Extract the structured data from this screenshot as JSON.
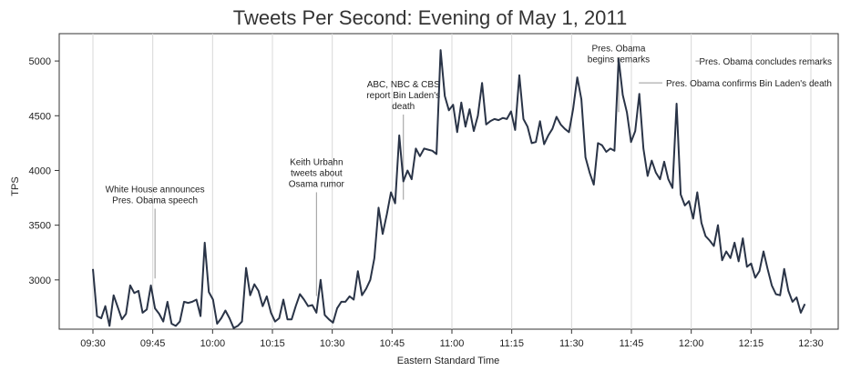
{
  "chart_data": {
    "type": "line",
    "title": "Tweets Per Second: Evening of May 1, 2011",
    "xlabel": "Eastern Standard Time",
    "ylabel": "TPS",
    "ylim": [
      2550,
      5250
    ],
    "grid": "vertical",
    "line_color": "#2a3447",
    "x_ticks": [
      "09:30",
      "09:45",
      "10:00",
      "10:15",
      "10:30",
      "10:45",
      "11:00",
      "11:15",
      "11:30",
      "11:45",
      "12:00",
      "12:15",
      "12:30"
    ],
    "y_ticks": [
      3000,
      3500,
      4000,
      4500,
      5000
    ],
    "x_range_minutes": [
      0,
      60,
      120,
      180
    ],
    "series": [
      {
        "values": [
          [
            0,
            3100
          ],
          [
            1,
            2670
          ],
          [
            2,
            2650
          ],
          [
            3,
            2760
          ],
          [
            4,
            2580
          ],
          [
            5,
            2860
          ],
          [
            6,
            2750
          ],
          [
            7,
            2640
          ],
          [
            8,
            2690
          ],
          [
            9,
            2950
          ],
          [
            10,
            2880
          ],
          [
            11,
            2900
          ],
          [
            12,
            2700
          ],
          [
            13,
            2730
          ],
          [
            14,
            2950
          ],
          [
            15,
            2740
          ],
          [
            16,
            2690
          ],
          [
            17,
            2620
          ],
          [
            18,
            2800
          ],
          [
            19,
            2600
          ],
          [
            20,
            2580
          ],
          [
            21,
            2620
          ],
          [
            22,
            2800
          ],
          [
            23,
            2790
          ],
          [
            24,
            2800
          ],
          [
            25,
            2820
          ],
          [
            26,
            2670
          ],
          [
            27,
            3340
          ],
          [
            28,
            2890
          ],
          [
            29,
            2820
          ],
          [
            30,
            2600
          ],
          [
            31,
            2650
          ],
          [
            32,
            2720
          ],
          [
            33,
            2650
          ],
          [
            34,
            2560
          ],
          [
            35,
            2580
          ],
          [
            36,
            2620
          ],
          [
            37,
            3110
          ],
          [
            38,
            2860
          ],
          [
            39,
            2960
          ],
          [
            40,
            2900
          ],
          [
            41,
            2760
          ],
          [
            42,
            2850
          ],
          [
            43,
            2700
          ],
          [
            44,
            2620
          ],
          [
            45,
            2650
          ],
          [
            46,
            2820
          ],
          [
            47,
            2640
          ],
          [
            48,
            2640
          ],
          [
            49,
            2760
          ],
          [
            50,
            2870
          ],
          [
            51,
            2820
          ],
          [
            52,
            2760
          ],
          [
            53,
            2770
          ],
          [
            54,
            2700
          ],
          [
            55,
            3000
          ],
          [
            56,
            2680
          ],
          [
            57,
            2640
          ],
          [
            58,
            2610
          ],
          [
            59,
            2740
          ],
          [
            60,
            2800
          ],
          [
            61,
            2800
          ],
          [
            62,
            2850
          ],
          [
            63,
            2820
          ],
          [
            64,
            3080
          ],
          [
            65,
            2860
          ],
          [
            66,
            2920
          ],
          [
            67,
            3000
          ],
          [
            68,
            3200
          ],
          [
            69,
            3660
          ],
          [
            70,
            3420
          ],
          [
            71,
            3600
          ],
          [
            72,
            3800
          ],
          [
            73,
            3700
          ],
          [
            74,
            4320
          ],
          [
            75,
            3900
          ],
          [
            76,
            4000
          ],
          [
            77,
            3920
          ],
          [
            78,
            4200
          ],
          [
            79,
            4130
          ],
          [
            80,
            4200
          ],
          [
            81,
            4190
          ],
          [
            82,
            4180
          ],
          [
            83,
            4150
          ],
          [
            84,
            5100
          ],
          [
            85,
            4680
          ],
          [
            86,
            4550
          ],
          [
            87,
            4600
          ],
          [
            88,
            4350
          ],
          [
            89,
            4620
          ],
          [
            90,
            4400
          ],
          [
            91,
            4560
          ],
          [
            92,
            4360
          ],
          [
            93,
            4500
          ],
          [
            94,
            4800
          ],
          [
            95,
            4420
          ],
          [
            96,
            4450
          ],
          [
            97,
            4470
          ],
          [
            98,
            4460
          ],
          [
            99,
            4480
          ],
          [
            100,
            4470
          ],
          [
            101,
            4540
          ],
          [
            102,
            4370
          ],
          [
            103,
            4870
          ],
          [
            104,
            4470
          ],
          [
            105,
            4400
          ],
          [
            106,
            4250
          ],
          [
            107,
            4260
          ],
          [
            108,
            4450
          ],
          [
            109,
            4240
          ],
          [
            110,
            4320
          ],
          [
            111,
            4380
          ],
          [
            112,
            4490
          ],
          [
            113,
            4420
          ],
          [
            114,
            4380
          ],
          [
            115,
            4350
          ],
          [
            116,
            4560
          ],
          [
            117,
            4850
          ],
          [
            118,
            4650
          ],
          [
            119,
            4120
          ],
          [
            120,
            3980
          ],
          [
            121,
            3870
          ],
          [
            122,
            4250
          ],
          [
            123,
            4230
          ],
          [
            124,
            4170
          ],
          [
            125,
            4200
          ],
          [
            126,
            4180
          ],
          [
            127,
            5020
          ],
          [
            128,
            4690
          ],
          [
            129,
            4530
          ],
          [
            130,
            4260
          ],
          [
            131,
            4360
          ],
          [
            132,
            4700
          ],
          [
            133,
            4200
          ],
          [
            134,
            3950
          ],
          [
            135,
            4090
          ],
          [
            136,
            3980
          ],
          [
            137,
            3920
          ],
          [
            138,
            4080
          ],
          [
            139,
            3920
          ],
          [
            140,
            3840
          ],
          [
            141,
            4610
          ],
          [
            142,
            3780
          ],
          [
            143,
            3680
          ],
          [
            144,
            3720
          ],
          [
            145,
            3560
          ],
          [
            146,
            3800
          ],
          [
            147,
            3520
          ],
          [
            148,
            3400
          ],
          [
            149,
            3360
          ],
          [
            150,
            3310
          ],
          [
            151,
            3500
          ],
          [
            152,
            3180
          ],
          [
            153,
            3260
          ],
          [
            154,
            3200
          ],
          [
            155,
            3340
          ],
          [
            156,
            3170
          ],
          [
            157,
            3380
          ],
          [
            158,
            3120
          ],
          [
            159,
            3150
          ],
          [
            160,
            3020
          ],
          [
            161,
            3080
          ],
          [
            162,
            3260
          ],
          [
            163,
            3100
          ],
          [
            164,
            2950
          ],
          [
            165,
            2870
          ],
          [
            166,
            2860
          ],
          [
            167,
            3100
          ],
          [
            168,
            2900
          ],
          [
            169,
            2800
          ],
          [
            170,
            2840
          ],
          [
            171,
            2700
          ],
          [
            172,
            2780
          ]
        ]
      }
    ],
    "annotations": [
      {
        "lines": [
          "White House announces",
          "Pres. Obama speech"
        ],
        "x": 15,
        "y": 2980,
        "anchor": "middle",
        "text_y": 3800,
        "leader": "vertical"
      },
      {
        "lines": [
          "Keith Urbahn",
          "tweets about",
          "Osama rumor"
        ],
        "x": 54,
        "y": 2820,
        "anchor": "middle",
        "text_y": 4050,
        "leader": "vertical"
      },
      {
        "lines": [
          "ABC, NBC & CBS",
          "report Bin Laden's",
          "death"
        ],
        "x": 75,
        "y": 3700,
        "anchor": "middle",
        "text_y": 4760,
        "leader": "vertical"
      },
      {
        "lines": [
          "Pres. Obama",
          "begins remarks"
        ],
        "x": 127,
        "y": 4500,
        "anchor": "middle",
        "text_y": 5090,
        "leader": "vertical"
      },
      {
        "lines": [
          "Pres. Obama concludes remarks"
        ],
        "x": 146,
        "y": 5000,
        "anchor": "end",
        "text_y": 5000,
        "leader": "horizontal"
      },
      {
        "lines": [
          "Pres. Obama confirms Bin Laden's death"
        ],
        "x": 131,
        "y": 4800,
        "anchor": "end",
        "text_y": 4800,
        "leader": "horizontal"
      }
    ]
  }
}
